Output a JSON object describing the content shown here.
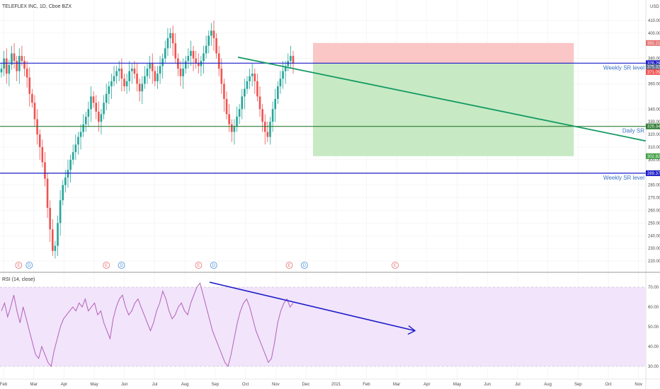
{
  "header": {
    "title": "TELEFLEX INC, 1D, Cboe BZX",
    "currency": "USD"
  },
  "rsi": {
    "title": "RSI (14, close)",
    "upper": 70,
    "lower": 30,
    "ticks": [
      "70.00",
      "60.00",
      "50.00",
      "40.00",
      "30.00"
    ]
  },
  "price_ticks": [
    "410.00",
    "400.00",
    "380.00",
    "370.00",
    "360.00",
    "340.00",
    "330.00",
    "320.00",
    "310.00",
    "300.00",
    "280.00",
    "270.00",
    "260.00",
    "250.00",
    "240.00",
    "230.00",
    "220.00"
  ],
  "month_labels": [
    "Feb",
    "Mar",
    "Apr",
    "May",
    "Jun",
    "Jul",
    "Aug",
    "Sep",
    "Oct",
    "Nov",
    "Dec",
    "2021",
    "Feb",
    "Mar",
    "Apr",
    "May",
    "Jun",
    "Jul",
    "Aug",
    "Sep",
    "Oct",
    "Nov"
  ],
  "levels": {
    "weekly_upper": {
      "label": "Weekly SR level",
      "price": 376.29,
      "tag": "376.29"
    },
    "daily": {
      "label": "Daily SR",
      "price": 326.34,
      "tag": "326.34"
    },
    "weekly_lower": {
      "label": "Weekly SR level",
      "price": 289.37,
      "tag": "289.37"
    }
  },
  "price_tags": {
    "stop": "392.21",
    "current_a": "375.32",
    "current_b": "371.05",
    "target": "302.82"
  },
  "events": [
    {
      "type": "E",
      "month_index": 0.5
    },
    {
      "type": "D",
      "month_index": 0.85
    },
    {
      "type": "E",
      "month_index": 3.4
    },
    {
      "type": "D",
      "month_index": 3.9
    },
    {
      "type": "E",
      "month_index": 6.45
    },
    {
      "type": "D",
      "month_index": 6.95
    },
    {
      "type": "E",
      "month_index": 9.45
    },
    {
      "type": "D",
      "month_index": 9.95
    },
    {
      "type": "E",
      "month_index": 12.95
    }
  ],
  "colors": {
    "up": "#26a69a",
    "down": "#ef5350",
    "level_blue": "#1a1ac8",
    "level_green": "#2e7d32",
    "trend_green": "#159a63",
    "rsi_line": "#b560b8",
    "rsi_fill": "#f1e4fb",
    "rsi_arrow": "#1a1ac8",
    "profit_zone": "#c7eac4",
    "loss_zone": "#fbc6c6"
  },
  "chart_data": {
    "type": "candlestick",
    "title": "TELEFLEX INC, 1D, Cboe BZX",
    "ylabel": "USD",
    "ylim": [
      215,
      415
    ],
    "rsi_ylim": [
      25,
      75
    ],
    "dates_note": "monthly approximations, Feb 2020 - Nov 2020",
    "closes": [
      372,
      380,
      368,
      375,
      384,
      378,
      370,
      382,
      378,
      372,
      365,
      352,
      345,
      332,
      320,
      310,
      298,
      285,
      262,
      245,
      228,
      232,
      250,
      268,
      280,
      286,
      292,
      300,
      306,
      312,
      318,
      322,
      328,
      334,
      340,
      350,
      345,
      338,
      330,
      336,
      345,
      352,
      358,
      362,
      366,
      370,
      372,
      364,
      358,
      362,
      370,
      372,
      368,
      360,
      354,
      360,
      366,
      372,
      376,
      370,
      362,
      368,
      374,
      380,
      388,
      396,
      400,
      392,
      380,
      372,
      366,
      372,
      378,
      382,
      386,
      380,
      376,
      374,
      378,
      384,
      390,
      398,
      402,
      396,
      384,
      372,
      360,
      348,
      336,
      328,
      322,
      326,
      334,
      340,
      350,
      356,
      362,
      366,
      368,
      362,
      350,
      340,
      330,
      322,
      318,
      330,
      340,
      348,
      358,
      364,
      370,
      374,
      378,
      382,
      376
    ],
    "rsi": [
      58,
      62,
      55,
      60,
      66,
      58,
      52,
      60,
      54,
      48,
      42,
      36,
      34,
      40,
      36,
      32,
      30,
      38,
      44,
      50,
      54,
      56,
      58,
      60,
      58,
      62,
      60,
      64,
      58,
      60,
      62,
      56,
      58,
      52,
      48,
      44,
      54,
      60,
      64,
      66,
      60,
      56,
      58,
      62,
      64,
      60,
      56,
      52,
      48,
      52,
      58,
      62,
      68,
      64,
      58,
      54,
      56,
      60,
      62,
      58,
      56,
      62,
      66,
      70,
      72,
      66,
      60,
      54,
      48,
      44,
      40,
      36,
      32,
      30,
      36,
      44,
      52,
      58,
      62,
      64,
      60,
      54,
      48,
      44,
      40,
      36,
      32,
      34,
      42,
      52,
      58,
      62,
      64,
      60,
      62
    ],
    "trendline": {
      "from_price": 381,
      "to_price": 313,
      "label": ""
    },
    "levels": [
      376.29,
      326.34,
      289.37
    ],
    "position": {
      "entry": 376.29,
      "stop": 392.21,
      "target": 302.82
    }
  }
}
